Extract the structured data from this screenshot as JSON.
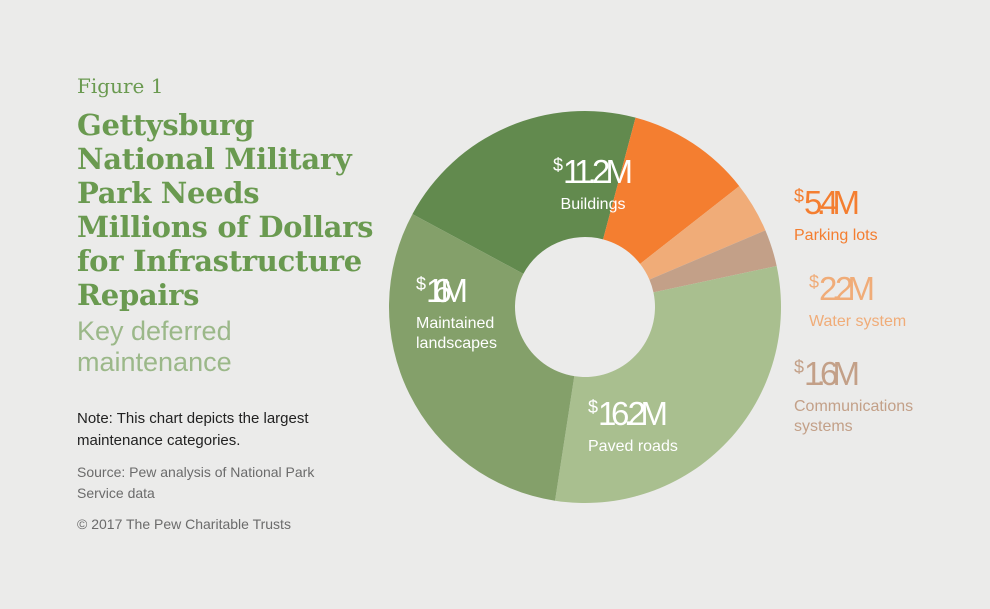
{
  "figure_label": "Figure 1",
  "title": "Gettysburg National Military Park Needs Millions of Dollars for Infrastructure Repairs",
  "subtitle": "Key deferred maintenance",
  "note": "Note: This chart depicts the largest maintenance categories.",
  "source": "Source: Pew analysis of National Park Service data",
  "copyright": "© 2017 The Pew Charitable Trusts",
  "chart_data": {
    "type": "pie",
    "donut": true,
    "unit_prefix": "$",
    "unit_suffix": "M",
    "slices": [
      {
        "label": "Buildings",
        "value": 11.2,
        "display": "11.2M",
        "color": "#628a4e",
        "label_placement": "inside"
      },
      {
        "label": "Parking lots",
        "value": 5.4,
        "display": "5.4M",
        "color": "#f47e30",
        "label_placement": "outside"
      },
      {
        "label": "Water system",
        "value": 2.2,
        "display": "2.2M",
        "color": "#f0ac78",
        "label_placement": "outside"
      },
      {
        "label": "Communications systems",
        "value": 1.6,
        "display": "1.6M",
        "color": "#c3a088",
        "label_placement": "outside"
      },
      {
        "label": "Paved roads",
        "value": 16.2,
        "display": "16.2M",
        "color": "#a9bf8f",
        "label_placement": "inside"
      },
      {
        "label": "Maintained landscapes",
        "value": 16,
        "display": "16M",
        "color": "#84a06a",
        "label_placement": "inside"
      }
    ]
  }
}
